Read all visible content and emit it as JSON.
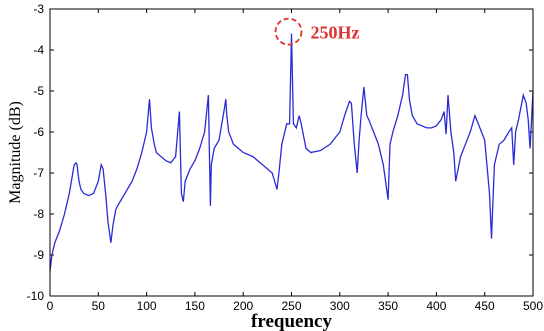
{
  "chart_data": {
    "type": "line",
    "xlabel": "frequency",
    "ylabel": "Magnitude (dB)",
    "xlim": [
      0,
      500
    ],
    "ylim": [
      -10,
      -3
    ],
    "x_ticks": [
      0,
      50,
      100,
      150,
      200,
      250,
      300,
      350,
      400,
      450,
      500
    ],
    "y_ticks": [
      -10,
      -9,
      -8,
      -7,
      -6,
      -5,
      -4,
      -3
    ],
    "grid": false,
    "line_color": "#2b2bd6",
    "annotation": {
      "text": "250Hz",
      "x": 250,
      "y": -3.6,
      "color": "#e03030"
    },
    "series": [
      {
        "x": [
          0,
          2,
          5,
          10,
          15,
          20,
          25,
          27,
          28,
          30,
          32,
          35,
          40,
          45,
          50,
          53,
          55,
          58,
          60,
          63,
          65,
          68,
          70,
          75,
          80,
          85,
          90,
          95,
          100,
          103,
          105,
          108,
          110,
          115,
          120,
          125,
          130,
          134,
          135,
          136,
          138,
          140,
          145,
          150,
          155,
          160,
          164,
          165,
          166,
          167,
          170,
          175,
          180,
          182,
          183,
          185,
          190,
          200,
          210,
          220,
          230,
          235,
          237,
          240,
          245,
          248,
          250,
          252,
          255,
          258,
          260,
          265,
          270,
          280,
          290,
          300,
          305,
          310,
          312,
          315,
          318,
          320,
          322,
          325,
          328,
          330,
          335,
          340,
          345,
          350,
          352,
          355,
          360,
          365,
          368,
          370,
          372,
          375,
          380,
          385,
          390,
          395,
          400,
          405,
          408,
          410,
          412,
          415,
          418,
          420,
          425,
          430,
          435,
          440,
          445,
          450,
          455,
          457,
          460,
          465,
          470,
          475,
          478,
          480,
          482,
          485,
          490,
          493,
          495,
          497,
          500
        ],
        "y": [
          -9.4,
          -9.0,
          -8.7,
          -8.4,
          -8.0,
          -7.5,
          -6.8,
          -6.75,
          -6.8,
          -7.2,
          -7.4,
          -7.5,
          -7.55,
          -7.5,
          -7.2,
          -6.8,
          -6.9,
          -7.6,
          -8.2,
          -8.7,
          -8.3,
          -7.9,
          -7.8,
          -7.6,
          -7.4,
          -7.2,
          -6.9,
          -6.5,
          -6.0,
          -5.2,
          -5.9,
          -6.3,
          -6.5,
          -6.6,
          -6.7,
          -6.75,
          -6.6,
          -5.5,
          -6.5,
          -7.5,
          -7.7,
          -7.2,
          -6.9,
          -6.7,
          -6.4,
          -6.0,
          -5.1,
          -6.5,
          -7.8,
          -6.8,
          -6.4,
          -6.2,
          -5.5,
          -5.2,
          -5.6,
          -6.0,
          -6.3,
          -6.5,
          -6.6,
          -6.8,
          -7.0,
          -7.4,
          -7.0,
          -6.3,
          -5.8,
          -5.8,
          -3.6,
          -5.8,
          -5.9,
          -5.6,
          -5.8,
          -6.4,
          -6.5,
          -6.45,
          -6.3,
          -6.0,
          -5.6,
          -5.25,
          -5.3,
          -6.3,
          -7.0,
          -6.2,
          -5.6,
          -4.9,
          -5.6,
          -5.7,
          -6.0,
          -6.3,
          -6.8,
          -7.65,
          -6.3,
          -6.0,
          -5.6,
          -5.1,
          -4.6,
          -4.6,
          -5.2,
          -5.6,
          -5.8,
          -5.85,
          -5.9,
          -5.9,
          -5.85,
          -5.7,
          -5.5,
          -6.05,
          -5.1,
          -6.0,
          -6.5,
          -7.2,
          -6.6,
          -6.3,
          -6.0,
          -5.6,
          -5.9,
          -6.2,
          -7.5,
          -8.6,
          -6.8,
          -6.3,
          -6.2,
          -6.0,
          -5.9,
          -6.8,
          -6.0,
          -5.7,
          -5.1,
          -5.3,
          -5.7,
          -6.4,
          -5.0
        ]
      }
    ]
  }
}
